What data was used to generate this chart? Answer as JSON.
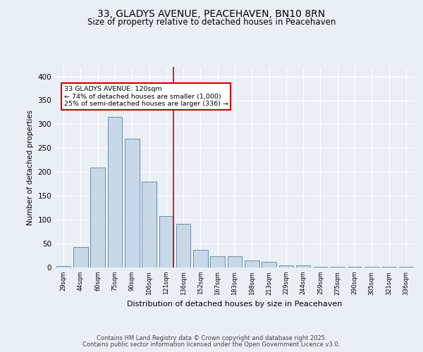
{
  "title1": "33, GLADYS AVENUE, PEACEHAVEN, BN10 8RN",
  "title2": "Size of property relative to detached houses in Peacehaven",
  "xlabel": "Distribution of detached houses by size in Peacehaven",
  "ylabel": "Number of detached properties",
  "categories": [
    "29sqm",
    "44sqm",
    "60sqm",
    "75sqm",
    "90sqm",
    "106sqm",
    "121sqm",
    "136sqm",
    "152sqm",
    "167sqm",
    "183sqm",
    "198sqm",
    "213sqm",
    "229sqm",
    "244sqm",
    "259sqm",
    "275sqm",
    "290sqm",
    "305sqm",
    "321sqm",
    "336sqm"
  ],
  "values": [
    3,
    43,
    210,
    315,
    270,
    180,
    107,
    92,
    37,
    23,
    23,
    15,
    12,
    5,
    5,
    2,
    1,
    1,
    1,
    1,
    1
  ],
  "bar_color": "#c8d8e8",
  "bar_edge_color": "#5580a0",
  "red_line_index": 6,
  "annotation_text": "33 GLADYS AVENUE: 120sqm\n← 74% of detached houses are smaller (1,000)\n25% of semi-detached houses are larger (336) →",
  "annotation_box_color": "#ffffff",
  "annotation_box_edge": "#cc0000",
  "background_color": "#eaeff5",
  "plot_bg_color": "#eaeff5",
  "footer1": "Contains HM Land Registry data © Crown copyright and database right 2025.",
  "footer2": "Contains public sector information licensed under the Open Government Licence v3.0.",
  "ylim": [
    0,
    420
  ],
  "yticks": [
    0,
    50,
    100,
    150,
    200,
    250,
    300,
    350,
    400
  ]
}
